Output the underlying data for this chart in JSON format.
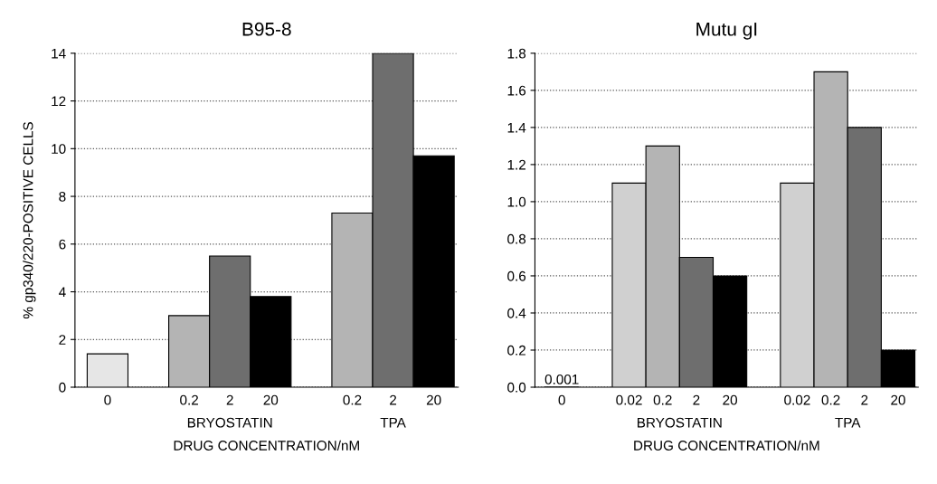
{
  "chart_data": [
    {
      "type": "bar",
      "title": "B95-8",
      "xlabel": "DRUG CONCENTRATION/nM",
      "ylabel": "% gp340/220-POSITIVE CELLS",
      "categories": [
        "0",
        null,
        "0.2",
        "2",
        "20",
        null,
        "0.2",
        "2",
        "20"
      ],
      "values": [
        1.4,
        null,
        3.0,
        5.5,
        3.8,
        null,
        7.3,
        14,
        9.7
      ],
      "colors": [
        "#e6e6e6",
        null,
        "#b4b4b4",
        "#6e6e6e",
        "#000000",
        null,
        "#b4b4b4",
        "#6e6e6e",
        "#000000"
      ],
      "ylim": [
        0,
        14
      ],
      "yticks": [
        0,
        2,
        4,
        6,
        8,
        10,
        12,
        14
      ],
      "grid": "y",
      "annotations": [
        "BRYOSTATIN",
        "TPA"
      ]
    },
    {
      "type": "bar",
      "title": "Mutu gI",
      "xlabel": "DRUG CONCENTRATION/nM",
      "categories": [
        "0",
        null,
        "0.02",
        "0.2",
        "2",
        "20",
        null,
        "0.02",
        "0.2",
        "2",
        "20"
      ],
      "values": [
        0.001,
        null,
        1.1,
        1.3,
        0.7,
        0.6,
        null,
        1.1,
        1.7,
        1.4,
        0.2
      ],
      "value_labels": [
        "0.001",
        null,
        null,
        null,
        null,
        null,
        null,
        null,
        null,
        null,
        null
      ],
      "colors": [
        "#ffffff",
        null,
        "#d0d0d0",
        "#b4b4b4",
        "#6e6e6e",
        "#000000",
        null,
        "#d0d0d0",
        "#b4b4b4",
        "#6e6e6e",
        "#000000"
      ],
      "ylim": [
        0,
        1.8
      ],
      "yticks": [
        {
          "value": 0,
          "label": "0.0"
        },
        {
          "value": 0.2,
          "label": "0.2"
        },
        {
          "value": 0.4,
          "label": "0.4"
        },
        {
          "value": 0.6,
          "label": "0.6"
        },
        {
          "value": 0.8,
          "label": "0.8"
        },
        {
          "value": 1.0,
          "label": "1.0"
        },
        {
          "value": 1.2,
          "label": "1.2"
        },
        {
          "value": 1.4,
          "label": "1.4"
        },
        {
          "value": 1.6,
          "label": "1.6"
        },
        {
          "value": 1.8,
          "label": "1.8"
        }
      ],
      "grid": "y",
      "annotations": [
        "BRYOSTATIN",
        "TPA"
      ]
    }
  ]
}
